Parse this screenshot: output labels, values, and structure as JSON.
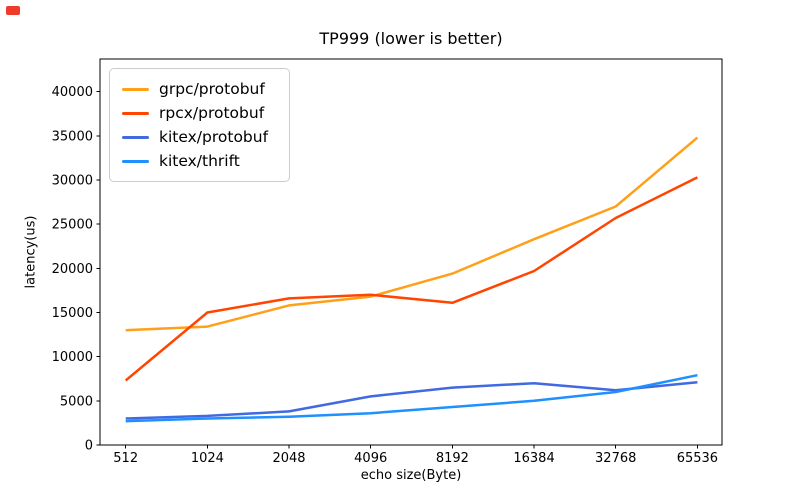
{
  "chart_data": {
    "type": "line",
    "title": "TP999 (lower is better)",
    "xlabel": "echo size(Byte)",
    "ylabel": "latency(us)",
    "categories": [
      "512",
      "1024",
      "2048",
      "4096",
      "8192",
      "16384",
      "32768",
      "65536"
    ],
    "series": [
      {
        "name": "grpc/protobuf",
        "color": "#ffa018",
        "values": [
          13000,
          13400,
          15800,
          16800,
          19400,
          23300,
          27000,
          34800
        ]
      },
      {
        "name": "rpcx/protobuf",
        "color": "#ff4500",
        "values": [
          7300,
          15000,
          16600,
          17000,
          16100,
          19700,
          25700,
          30300
        ]
      },
      {
        "name": "kitex/protobuf",
        "color": "#4169e1",
        "values": [
          3000,
          3300,
          3800,
          5500,
          6500,
          7000,
          6200,
          7100
        ]
      },
      {
        "name": "kitex/thrift",
        "color": "#1e90ff",
        "values": [
          2700,
          3000,
          3200,
          3600,
          4300,
          5000,
          6000,
          7900
        ]
      }
    ],
    "ylim": [
      0,
      43700
    ],
    "yticks": [
      0,
      5000,
      10000,
      15000,
      20000,
      25000,
      30000,
      35000,
      40000
    ],
    "legend_position": "upper left",
    "grid": false,
    "axis_color": "#000000",
    "background_color": "#ffffff"
  }
}
